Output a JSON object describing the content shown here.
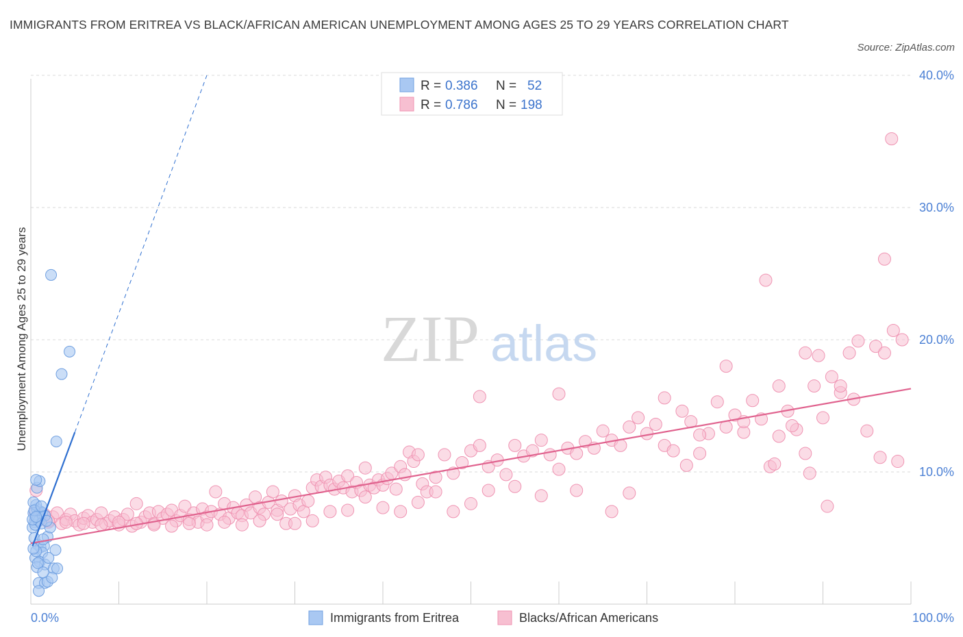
{
  "title": "IMMIGRANTS FROM ERITREA VS BLACK/AFRICAN AMERICAN UNEMPLOYMENT AMONG AGES 25 TO 29 YEARS CORRELATION CHART",
  "source": "Source: ZipAtlas.com",
  "watermark": {
    "zip": "ZIP",
    "atlas": "atlas"
  },
  "legend": {
    "r_label": "R =",
    "n_label": "N =",
    "series1": {
      "r": "0.386",
      "n": "52"
    },
    "series2": {
      "r": "0.786",
      "n": "198"
    }
  },
  "colors": {
    "blue_fill": "#a9c8f2",
    "blue_stroke": "#6f9fe0",
    "blue_line": "#2e6fd0",
    "pink_fill": "#f7bfd1",
    "pink_stroke": "#ef93b2",
    "pink_line": "#e0628e",
    "grid": "#d9d9d9",
    "tick_text": "#4a7fd4"
  },
  "chart_data": {
    "type": "scatter",
    "title": "IMMIGRANTS FROM ERITREA VS BLACK/AFRICAN AMERICAN UNEMPLOYMENT AMONG AGES 25 TO 29 YEARS CORRELATION CHART",
    "xlabel": "",
    "ylabel": "Unemployment Among Ages 25 to 29 years",
    "xlim": [
      0,
      100
    ],
    "ylim": [
      0,
      40
    ],
    "x_tick_labels": [
      "0.0%",
      "100.0%"
    ],
    "y_ticks": [
      10,
      20,
      30,
      40
    ],
    "y_tick_labels": [
      "10.0%",
      "20.0%",
      "30.0%",
      "40.0%"
    ],
    "grid": true,
    "legend_position": "top-center",
    "series": [
      {
        "name": "Immigrants from Eritrea",
        "r": 0.386,
        "n": 52,
        "trend": {
          "x0": 0.2,
          "y0": 4.4,
          "x1": 5.0,
          "y1": 13.0,
          "dash_to_x": 20.0,
          "dash_to_y": 40.0
        },
        "points": [
          [
            0.3,
            6.9
          ],
          [
            0.5,
            6.5
          ],
          [
            0.7,
            7.2
          ],
          [
            0.9,
            6.8
          ],
          [
            1.1,
            7.0
          ],
          [
            0.4,
            6.2
          ],
          [
            0.6,
            7.5
          ],
          [
            0.8,
            6.6
          ],
          [
            1.3,
            6.9
          ],
          [
            1.6,
            6.7
          ],
          [
            0.2,
            5.8
          ],
          [
            0.5,
            6.0
          ],
          [
            0.9,
            6.3
          ],
          [
            1.2,
            6.1
          ],
          [
            0.3,
            7.7
          ],
          [
            0.7,
            8.8
          ],
          [
            1.0,
            9.3
          ],
          [
            0.6,
            9.4
          ],
          [
            0.8,
            4.5
          ],
          [
            1.1,
            4.3
          ],
          [
            1.5,
            4.4
          ],
          [
            2.8,
            4.1
          ],
          [
            1.3,
            3.9
          ],
          [
            0.5,
            3.5
          ],
          [
            1.0,
            3.2
          ],
          [
            1.6,
            3.0
          ],
          [
            0.7,
            2.8
          ],
          [
            2.6,
            2.7
          ],
          [
            3.0,
            2.7
          ],
          [
            1.9,
            5.1
          ],
          [
            2.2,
            5.8
          ],
          [
            0.9,
            1.6
          ],
          [
            1.6,
            1.6
          ],
          [
            0.9,
            1.0
          ],
          [
            1.9,
            1.7
          ],
          [
            2.4,
            2.0
          ],
          [
            0.4,
            5.0
          ],
          [
            1.4,
            4.9
          ],
          [
            0.6,
            4.0
          ],
          [
            2.9,
            12.3
          ],
          [
            3.5,
            17.4
          ],
          [
            4.4,
            19.1
          ],
          [
            2.3,
            24.9
          ],
          [
            0.2,
            6.4
          ],
          [
            0.4,
            7.1
          ],
          [
            0.6,
            6.6
          ],
          [
            1.8,
            6.3
          ],
          [
            1.2,
            7.4
          ],
          [
            0.3,
            4.2
          ],
          [
            0.8,
            3.1
          ],
          [
            1.4,
            2.4
          ],
          [
            2.0,
            3.5
          ]
        ]
      },
      {
        "name": "Blacks/African Americans",
        "r": 0.786,
        "n": 198,
        "trend": {
          "x0": 0.0,
          "y0": 4.6,
          "x1": 100.0,
          "y1": 16.3
        },
        "points": [
          [
            0.5,
            7.0
          ],
          [
            1.0,
            6.5
          ],
          [
            1.5,
            6.8
          ],
          [
            2.0,
            6.2
          ],
          [
            2.5,
            6.6
          ],
          [
            3.0,
            6.9
          ],
          [
            3.5,
            6.1
          ],
          [
            4.0,
            6.4
          ],
          [
            4.5,
            6.8
          ],
          [
            5.0,
            6.3
          ],
          [
            5.5,
            6.0
          ],
          [
            6.0,
            6.5
          ],
          [
            6.5,
            6.7
          ],
          [
            7.0,
            6.2
          ],
          [
            7.5,
            6.4
          ],
          [
            8.0,
            6.9
          ],
          [
            8.5,
            6.1
          ],
          [
            9.0,
            6.3
          ],
          [
            9.5,
            6.6
          ],
          [
            10.0,
            6.0
          ],
          [
            10.5,
            6.4
          ],
          [
            11.0,
            6.8
          ],
          [
            11.5,
            5.9
          ],
          [
            12.0,
            7.6
          ],
          [
            12.5,
            6.2
          ],
          [
            13.0,
            6.6
          ],
          [
            13.5,
            6.9
          ],
          [
            14.0,
            6.1
          ],
          [
            14.5,
            7.0
          ],
          [
            15.0,
            6.5
          ],
          [
            15.5,
            6.8
          ],
          [
            16.0,
            7.1
          ],
          [
            16.5,
            6.3
          ],
          [
            17.0,
            6.7
          ],
          [
            17.5,
            7.4
          ],
          [
            18.0,
            6.4
          ],
          [
            18.5,
            6.9
          ],
          [
            19.0,
            6.2
          ],
          [
            19.5,
            7.2
          ],
          [
            20.0,
            6.6
          ],
          [
            20.5,
            7.0
          ],
          [
            21.0,
            8.5
          ],
          [
            21.5,
            6.8
          ],
          [
            22.0,
            7.6
          ],
          [
            22.5,
            6.5
          ],
          [
            23.0,
            7.3
          ],
          [
            23.5,
            6.9
          ],
          [
            24.0,
            6.7
          ],
          [
            24.5,
            7.5
          ],
          [
            25.0,
            6.9
          ],
          [
            25.5,
            8.1
          ],
          [
            26.0,
            7.3
          ],
          [
            26.5,
            6.8
          ],
          [
            27.0,
            7.7
          ],
          [
            27.5,
            8.5
          ],
          [
            28.0,
            7.1
          ],
          [
            28.5,
            7.8
          ],
          [
            29.0,
            6.1
          ],
          [
            29.5,
            7.2
          ],
          [
            30.0,
            8.2
          ],
          [
            30.5,
            7.5
          ],
          [
            31.0,
            7.0
          ],
          [
            31.5,
            7.8
          ],
          [
            32.0,
            8.8
          ],
          [
            32.5,
            9.4
          ],
          [
            33.0,
            8.9
          ],
          [
            33.5,
            9.6
          ],
          [
            34.0,
            9.0
          ],
          [
            34.5,
            8.7
          ],
          [
            35.0,
            9.3
          ],
          [
            35.5,
            8.8
          ],
          [
            36.0,
            9.7
          ],
          [
            36.5,
            8.5
          ],
          [
            37.0,
            9.2
          ],
          [
            37.5,
            8.6
          ],
          [
            38.0,
            10.3
          ],
          [
            38.5,
            9.0
          ],
          [
            39.0,
            8.8
          ],
          [
            39.5,
            9.4
          ],
          [
            40.0,
            9.0
          ],
          [
            40.5,
            9.5
          ],
          [
            41.0,
            9.9
          ],
          [
            41.5,
            8.7
          ],
          [
            42.0,
            10.4
          ],
          [
            42.5,
            9.8
          ],
          [
            43.0,
            11.5
          ],
          [
            43.5,
            10.8
          ],
          [
            44.0,
            11.3
          ],
          [
            44.5,
            9.1
          ],
          [
            45.0,
            8.5
          ],
          [
            46.0,
            9.6
          ],
          [
            47.0,
            11.3
          ],
          [
            48.0,
            9.9
          ],
          [
            49.0,
            10.7
          ],
          [
            50.0,
            11.6
          ],
          [
            51.0,
            12.0
          ],
          [
            52.0,
            10.4
          ],
          [
            53.0,
            10.9
          ],
          [
            54.0,
            9.8
          ],
          [
            55.0,
            12.0
          ],
          [
            56.0,
            11.2
          ],
          [
            57.0,
            11.6
          ],
          [
            58.0,
            12.4
          ],
          [
            59.0,
            11.3
          ],
          [
            60.0,
            10.2
          ],
          [
            61.0,
            11.8
          ],
          [
            62.0,
            11.4
          ],
          [
            63.0,
            12.3
          ],
          [
            64.0,
            11.8
          ],
          [
            65.0,
            13.1
          ],
          [
            66.0,
            12.4
          ],
          [
            67.0,
            12.0
          ],
          [
            68.0,
            13.4
          ],
          [
            69.0,
            14.1
          ],
          [
            70.0,
            12.9
          ],
          [
            71.0,
            13.6
          ],
          [
            72.0,
            12.0
          ],
          [
            73.0,
            11.6
          ],
          [
            74.0,
            14.6
          ],
          [
            75.0,
            13.8
          ],
          [
            76.0,
            11.4
          ],
          [
            77.0,
            12.9
          ],
          [
            78.0,
            15.3
          ],
          [
            79.0,
            13.4
          ],
          [
            80.0,
            14.3
          ],
          [
            81.0,
            13.0
          ],
          [
            82.0,
            15.4
          ],
          [
            83.0,
            14.0
          ],
          [
            84.0,
            10.4
          ],
          [
            85.0,
            12.7
          ],
          [
            86.0,
            14.6
          ],
          [
            87.0,
            13.2
          ],
          [
            88.0,
            11.4
          ],
          [
            89.0,
            16.5
          ],
          [
            90.0,
            14.1
          ],
          [
            91.0,
            17.2
          ],
          [
            92.0,
            16.0
          ],
          [
            93.0,
            19.0
          ],
          [
            94.0,
            19.9
          ],
          [
            95.0,
            13.1
          ],
          [
            96.0,
            19.5
          ],
          [
            97.0,
            19.0
          ],
          [
            98.0,
            20.7
          ],
          [
            99.0,
            20.0
          ],
          [
            97.0,
            26.1
          ],
          [
            97.8,
            35.2
          ],
          [
            83.5,
            24.5
          ],
          [
            79.0,
            18.0
          ],
          [
            85.0,
            16.5
          ],
          [
            92.0,
            16.5
          ],
          [
            88.0,
            19.0
          ],
          [
            89.5,
            18.8
          ],
          [
            96.5,
            11.1
          ],
          [
            98.5,
            10.8
          ],
          [
            90.5,
            7.4
          ],
          [
            68.0,
            8.4
          ],
          [
            66.0,
            7.0
          ],
          [
            62.0,
            8.6
          ],
          [
            58.0,
            8.2
          ],
          [
            55.0,
            8.9
          ],
          [
            52.0,
            8.6
          ],
          [
            50.0,
            7.6
          ],
          [
            48.0,
            7.0
          ],
          [
            46.0,
            8.5
          ],
          [
            44.0,
            7.7
          ],
          [
            42.0,
            7.0
          ],
          [
            40.0,
            7.3
          ],
          [
            38.0,
            8.1
          ],
          [
            36.0,
            7.1
          ],
          [
            34.0,
            7.0
          ],
          [
            32.0,
            6.3
          ],
          [
            30.0,
            6.1
          ],
          [
            28.0,
            6.8
          ],
          [
            26.0,
            6.3
          ],
          [
            24.0,
            6.0
          ],
          [
            22.0,
            6.2
          ],
          [
            20.0,
            6.0
          ],
          [
            18.0,
            6.1
          ],
          [
            16.0,
            5.9
          ],
          [
            14.0,
            6.0
          ],
          [
            12.0,
            6.1
          ],
          [
            10.0,
            6.2
          ],
          [
            8.0,
            6.0
          ],
          [
            6.0,
            6.1
          ],
          [
            4.0,
            6.2
          ],
          [
            2.0,
            6.3
          ],
          [
            1.0,
            6.4
          ],
          [
            0.6,
            8.6
          ],
          [
            60.0,
            15.9
          ],
          [
            51.0,
            15.7
          ],
          [
            76.0,
            12.8
          ],
          [
            72.0,
            15.6
          ],
          [
            81.0,
            13.8
          ],
          [
            86.5,
            13.5
          ],
          [
            93.5,
            15.5
          ],
          [
            88.5,
            9.9
          ],
          [
            84.5,
            10.6
          ],
          [
            74.5,
            10.5
          ]
        ]
      }
    ]
  },
  "bottom_legend": [
    "Immigrants from Eritrea",
    "Blacks/African Americans"
  ]
}
